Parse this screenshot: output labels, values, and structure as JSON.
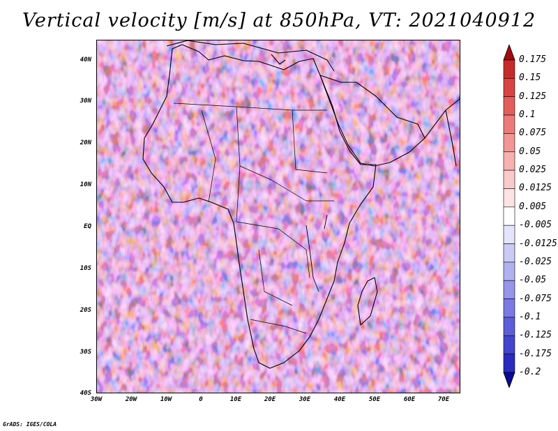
{
  "title": "Vertical velocity [m/s] at 850hPa, VT: 2021040912",
  "credit": "GrADS: IGES/COLA",
  "map": {
    "projection": "lat-lon",
    "lon_range": [
      -30,
      75
    ],
    "lat_range": [
      -40,
      45
    ],
    "lat_labels": [
      "40N",
      "30N",
      "20N",
      "10N",
      "EQ",
      "10S",
      "20S",
      "30S",
      "40S"
    ],
    "lon_labels": [
      "30W",
      "20W",
      "10W",
      "0",
      "10E",
      "20E",
      "30E",
      "40E",
      "50E",
      "60E",
      "70E"
    ],
    "field": "vertical velocity",
    "units": "m/s"
  },
  "colorbar": {
    "labels": [
      "0.175",
      "0.15",
      "0.125",
      "0.1",
      "0.075",
      "0.05",
      "0.025",
      "0.0125",
      "0.005",
      "-0.005",
      "-0.0125",
      "-0.025",
      "-0.05",
      "-0.075",
      "-0.1",
      "-0.125",
      "-0.175",
      "-0.2"
    ],
    "colors": [
      "#b3121a",
      "#c52b2b",
      "#d64444",
      "#e35d5d",
      "#ec7a7a",
      "#f39595",
      "#f7b1b1",
      "#facaca",
      "#fde4e4",
      "#ffffff",
      "#e4e4fa",
      "#cacaf5",
      "#b1b1f0",
      "#9595ea",
      "#7a7ae2",
      "#5d5dd9",
      "#4444cc",
      "#2b2bbd",
      "#1212a8"
    ],
    "arrow_top_color": "#a00a12",
    "arrow_bottom_color": "#0a0a96"
  }
}
